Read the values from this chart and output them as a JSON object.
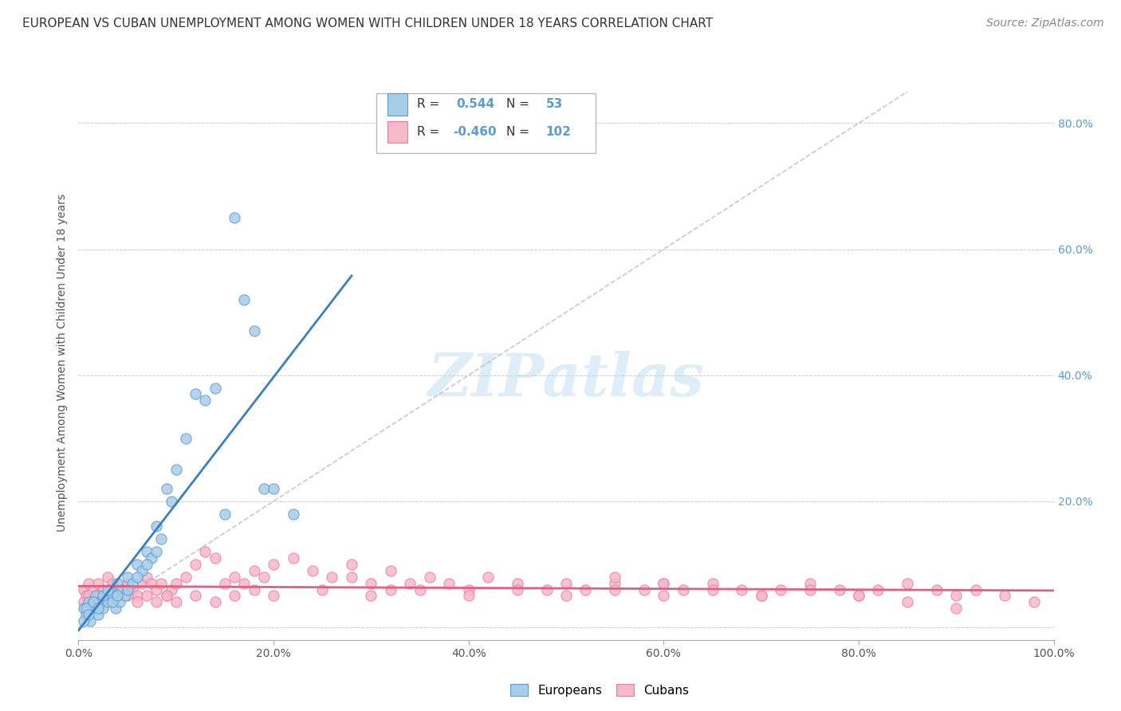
{
  "title": "EUROPEAN VS CUBAN UNEMPLOYMENT AMONG WOMEN WITH CHILDREN UNDER 18 YEARS CORRELATION CHART",
  "source": "Source: ZipAtlas.com",
  "ylabel": "Unemployment Among Women with Children Under 18 years",
  "xlim": [
    0.0,
    1.0
  ],
  "ylim": [
    -0.02,
    0.86
  ],
  "xticks": [
    0.0,
    0.2,
    0.4,
    0.6,
    0.8,
    1.0
  ],
  "yticks": [
    0.0,
    0.2,
    0.4,
    0.6,
    0.8
  ],
  "xticklabels": [
    "0.0%",
    "20.0%",
    "40.0%",
    "60.0%",
    "80.0%",
    "100.0%"
  ],
  "yticklabels_right": [
    "",
    "20.0%",
    "40.0%",
    "60.0%",
    "80.0%"
  ],
  "legend_label1": "Europeans",
  "legend_label2": "Cubans",
  "R1": "0.544",
  "N1": "53",
  "R2": "-0.460",
  "N2": "102",
  "color_european_fill": "#A8CDE8",
  "color_european_edge": "#5B9BD5",
  "color_cuban_fill": "#F7B8C8",
  "color_cuban_edge": "#E87FA0",
  "color_line_european": "#3A7FC1",
  "color_line_cuban": "#E06080",
  "color_diag": "#BBBBBB",
  "color_right_tick": "#5B9BD5",
  "background_color": "#FFFFFF",
  "watermark": "ZIPatlas",
  "title_fontsize": 11,
  "axis_label_fontsize": 10,
  "tick_fontsize": 10,
  "source_fontsize": 10,
  "european_x": [
    0.005,
    0.008,
    0.01,
    0.012,
    0.015,
    0.018,
    0.02,
    0.022,
    0.025,
    0.028,
    0.03,
    0.032,
    0.035,
    0.038,
    0.04,
    0.042,
    0.045,
    0.048,
    0.05,
    0.055,
    0.06,
    0.065,
    0.07,
    0.075,
    0.08,
    0.085,
    0.09,
    0.095,
    0.1,
    0.11,
    0.12,
    0.13,
    0.14,
    0.15,
    0.16,
    0.17,
    0.18,
    0.19,
    0.2,
    0.22,
    0.005,
    0.008,
    0.01,
    0.015,
    0.02,
    0.025,
    0.03,
    0.035,
    0.04,
    0.05,
    0.06,
    0.07,
    0.08
  ],
  "european_y": [
    0.03,
    0.02,
    0.04,
    0.01,
    0.03,
    0.05,
    0.02,
    0.04,
    0.03,
    0.05,
    0.04,
    0.06,
    0.05,
    0.03,
    0.07,
    0.04,
    0.06,
    0.05,
    0.08,
    0.07,
    0.1,
    0.09,
    0.12,
    0.11,
    0.16,
    0.14,
    0.22,
    0.2,
    0.25,
    0.3,
    0.37,
    0.36,
    0.38,
    0.18,
    0.65,
    0.52,
    0.47,
    0.22,
    0.22,
    0.18,
    0.01,
    0.03,
    0.02,
    0.04,
    0.03,
    0.05,
    0.06,
    0.04,
    0.05,
    0.06,
    0.08,
    0.1,
    0.12
  ],
  "cuban_x": [
    0.005,
    0.008,
    0.01,
    0.012,
    0.015,
    0.018,
    0.02,
    0.025,
    0.03,
    0.035,
    0.04,
    0.045,
    0.05,
    0.055,
    0.06,
    0.065,
    0.07,
    0.075,
    0.08,
    0.085,
    0.09,
    0.095,
    0.1,
    0.11,
    0.12,
    0.13,
    0.14,
    0.15,
    0.16,
    0.17,
    0.18,
    0.19,
    0.2,
    0.22,
    0.24,
    0.26,
    0.28,
    0.3,
    0.32,
    0.34,
    0.36,
    0.38,
    0.4,
    0.42,
    0.45,
    0.48,
    0.5,
    0.52,
    0.55,
    0.58,
    0.6,
    0.62,
    0.65,
    0.68,
    0.7,
    0.72,
    0.75,
    0.78,
    0.8,
    0.82,
    0.85,
    0.88,
    0.9,
    0.92,
    0.95,
    0.98,
    0.005,
    0.01,
    0.015,
    0.02,
    0.025,
    0.03,
    0.04,
    0.05,
    0.06,
    0.07,
    0.08,
    0.09,
    0.1,
    0.12,
    0.14,
    0.16,
    0.18,
    0.2,
    0.25,
    0.3,
    0.35,
    0.4,
    0.45,
    0.5,
    0.55,
    0.6,
    0.65,
    0.7,
    0.75,
    0.8,
    0.85,
    0.9,
    0.28,
    0.32,
    0.55,
    0.6
  ],
  "cuban_y": [
    0.06,
    0.05,
    0.07,
    0.04,
    0.06,
    0.05,
    0.07,
    0.06,
    0.08,
    0.07,
    0.05,
    0.06,
    0.07,
    0.06,
    0.05,
    0.07,
    0.08,
    0.07,
    0.06,
    0.07,
    0.05,
    0.06,
    0.07,
    0.08,
    0.1,
    0.12,
    0.11,
    0.07,
    0.08,
    0.07,
    0.09,
    0.08,
    0.1,
    0.11,
    0.09,
    0.08,
    0.1,
    0.07,
    0.06,
    0.07,
    0.08,
    0.07,
    0.06,
    0.08,
    0.07,
    0.06,
    0.07,
    0.06,
    0.07,
    0.06,
    0.07,
    0.06,
    0.07,
    0.06,
    0.05,
    0.06,
    0.07,
    0.06,
    0.05,
    0.06,
    0.07,
    0.06,
    0.05,
    0.06,
    0.05,
    0.04,
    0.04,
    0.05,
    0.04,
    0.05,
    0.04,
    0.05,
    0.06,
    0.05,
    0.04,
    0.05,
    0.04,
    0.05,
    0.04,
    0.05,
    0.04,
    0.05,
    0.06,
    0.05,
    0.06,
    0.05,
    0.06,
    0.05,
    0.06,
    0.05,
    0.06,
    0.05,
    0.06,
    0.05,
    0.06,
    0.05,
    0.04,
    0.03,
    0.08,
    0.09,
    0.08,
    0.07
  ]
}
